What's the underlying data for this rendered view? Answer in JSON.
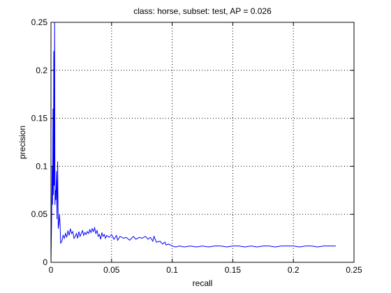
{
  "chart_data": {
    "type": "line",
    "title": "class: horse, subset: test, AP = 0.026",
    "xlabel": "recall",
    "ylabel": "precision",
    "xlim": [
      0,
      0.25
    ],
    "ylim": [
      0,
      0.25
    ],
    "xticks": [
      0,
      0.05,
      0.1,
      0.15,
      0.2,
      0.25
    ],
    "xtick_labels": [
      "0",
      "0.05",
      "0.1",
      "0.15",
      "0.2",
      "0.25"
    ],
    "yticks": [
      0,
      0.05,
      0.1,
      0.15,
      0.2,
      0.25
    ],
    "ytick_labels": [
      "0",
      "0.05",
      "0.1",
      "0.15",
      "0.2",
      "0.25"
    ],
    "grid": true,
    "grid_style": "dotted",
    "line_color": "#0000ff",
    "series": [
      {
        "x": [
          0.0,
          0.0005,
          0.001,
          0.0013,
          0.0017,
          0.002,
          0.0023,
          0.0026,
          0.003,
          0.0033,
          0.0036,
          0.004,
          0.0045,
          0.005,
          0.0055,
          0.006,
          0.0065,
          0.007,
          0.0075,
          0.008,
          0.009,
          0.0095,
          0.01,
          0.011,
          0.012,
          0.013,
          0.014,
          0.015,
          0.016,
          0.017,
          0.018,
          0.019,
          0.02,
          0.021,
          0.022,
          0.023,
          0.024,
          0.025,
          0.026,
          0.027,
          0.028,
          0.029,
          0.03,
          0.031,
          0.032,
          0.033,
          0.034,
          0.035,
          0.036,
          0.037,
          0.038,
          0.039,
          0.04,
          0.041,
          0.042,
          0.043,
          0.044,
          0.045,
          0.046,
          0.048,
          0.05,
          0.052,
          0.054,
          0.055,
          0.057,
          0.06,
          0.062,
          0.065,
          0.068,
          0.07,
          0.073,
          0.075,
          0.078,
          0.08,
          0.082,
          0.084,
          0.085,
          0.087,
          0.09,
          0.092,
          0.094,
          0.095,
          0.097,
          0.1,
          0.103,
          0.106,
          0.11,
          0.115,
          0.12,
          0.125,
          0.13,
          0.135,
          0.14,
          0.145,
          0.15,
          0.155,
          0.16,
          0.165,
          0.17,
          0.175,
          0.18,
          0.185,
          0.19,
          0.195,
          0.2,
          0.205,
          0.21,
          0.215,
          0.22,
          0.225,
          0.23,
          0.235
        ],
        "y": [
          0.0,
          0.04,
          0.1,
          0.06,
          0.16,
          0.07,
          0.22,
          0.08,
          0.25,
          0.06,
          0.075,
          0.065,
          0.095,
          0.045,
          0.105,
          0.035,
          0.04,
          0.05,
          0.04,
          0.02,
          0.022,
          0.025,
          0.028,
          0.025,
          0.03,
          0.026,
          0.033,
          0.028,
          0.035,
          0.03,
          0.032,
          0.025,
          0.027,
          0.03,
          0.025,
          0.032,
          0.027,
          0.03,
          0.033,
          0.028,
          0.031,
          0.029,
          0.032,
          0.03,
          0.034,
          0.031,
          0.035,
          0.032,
          0.036,
          0.03,
          0.033,
          0.027,
          0.029,
          0.024,
          0.031,
          0.027,
          0.029,
          0.025,
          0.028,
          0.026,
          0.029,
          0.024,
          0.028,
          0.023,
          0.027,
          0.025,
          0.026,
          0.023,
          0.027,
          0.024,
          0.026,
          0.025,
          0.027,
          0.024,
          0.026,
          0.022,
          0.027,
          0.021,
          0.022,
          0.019,
          0.021,
          0.018,
          0.019,
          0.017,
          0.016,
          0.017,
          0.016,
          0.017,
          0.016,
          0.017,
          0.016,
          0.017,
          0.017,
          0.016,
          0.017,
          0.017,
          0.016,
          0.017,
          0.016,
          0.017,
          0.017,
          0.016,
          0.017,
          0.017,
          0.017,
          0.016,
          0.017,
          0.017,
          0.016,
          0.017,
          0.017,
          0.017
        ]
      }
    ]
  }
}
